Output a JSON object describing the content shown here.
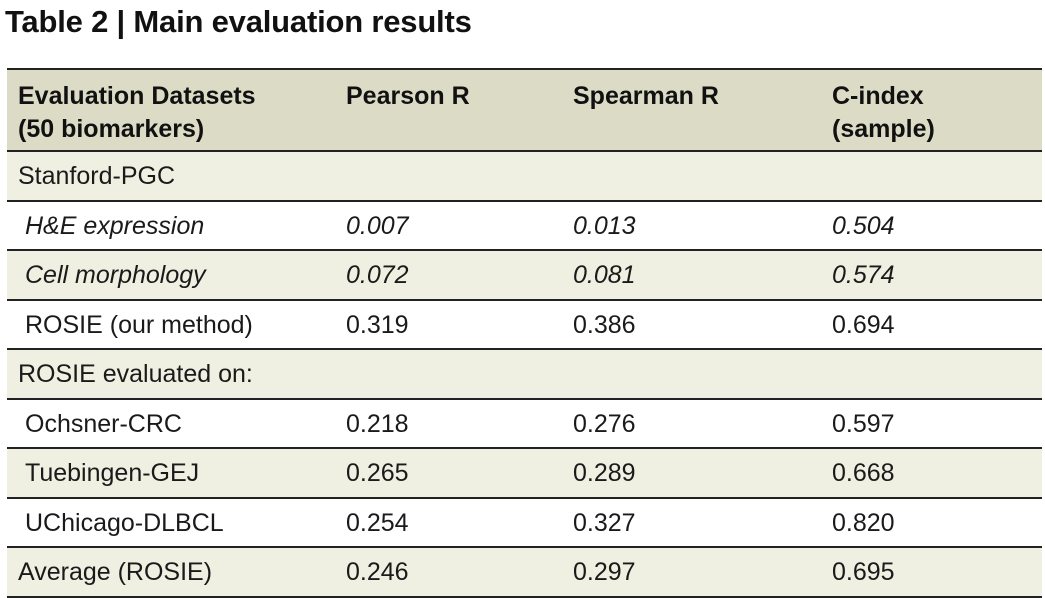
{
  "caption": "Table 2 | Main evaluation results",
  "table": {
    "header": {
      "dataset_line1": "Evaluation Datasets",
      "dataset_line2": "(50 biomarkers)",
      "pearson": "Pearson R",
      "spearman": "Spearman R",
      "cindex_line1": "C-index",
      "cindex_line2": "(sample)"
    },
    "rows": [
      {
        "label": "Stanford-PGC",
        "pearson": "",
        "spearman": "",
        "cindex": ""
      },
      {
        "label": "H&E expression",
        "pearson": "0.007",
        "spearman": "0.013",
        "cindex": "0.504"
      },
      {
        "label": "Cell morphology",
        "pearson": "0.072",
        "spearman": "0.081",
        "cindex": "0.574"
      },
      {
        "label": "ROSIE (our method)",
        "pearson": "0.319",
        "spearman": "0.386",
        "cindex": "0.694"
      },
      {
        "label": "ROSIE evaluated on:",
        "pearson": "",
        "spearman": "",
        "cindex": ""
      },
      {
        "label": "Ochsner-CRC",
        "pearson": "0.218",
        "spearman": "0.276",
        "cindex": "0.597"
      },
      {
        "label": "Tuebingen-GEJ",
        "pearson": "0.265",
        "spearman": "0.289",
        "cindex": "0.668"
      },
      {
        "label": "UChicago-DLBCL",
        "pearson": "0.254",
        "spearman": "0.327",
        "cindex": "0.820"
      },
      {
        "label": "Average (ROSIE)",
        "pearson": "0.246",
        "spearman": "0.297",
        "cindex": "0.695"
      }
    ]
  }
}
